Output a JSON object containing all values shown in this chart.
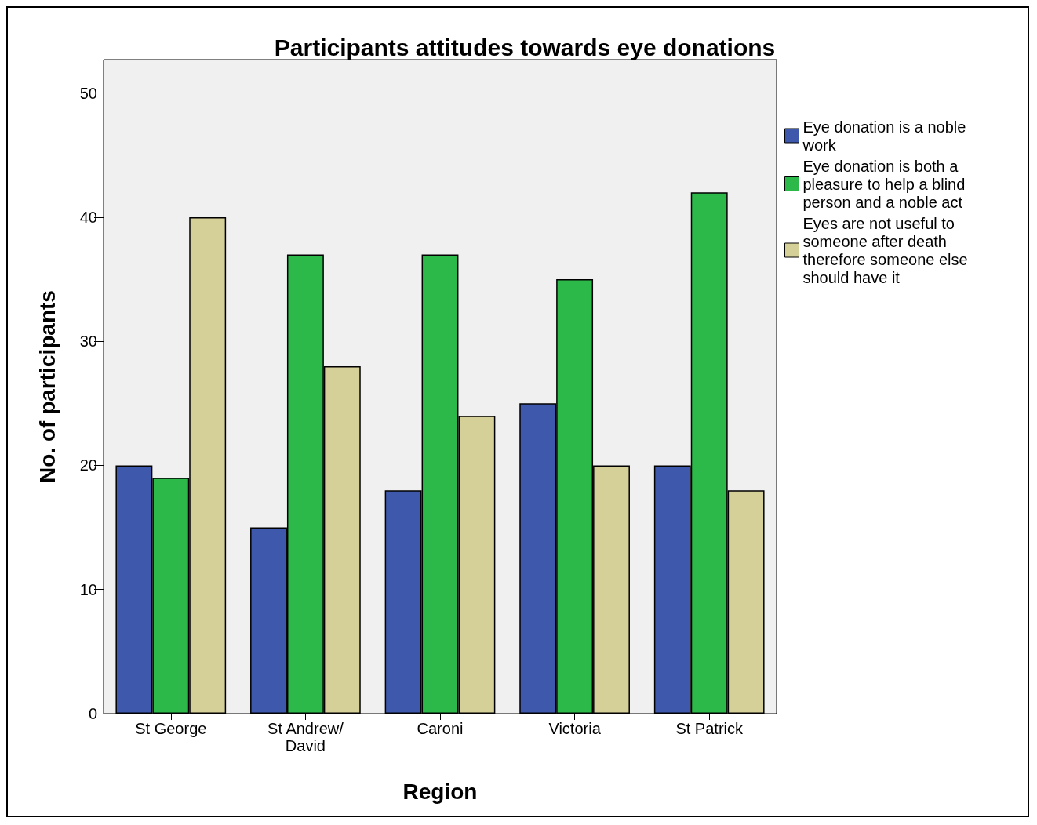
{
  "chart_data": {
    "type": "bar",
    "title": "Participants attitudes towards eye donations",
    "xlabel": "Region",
    "ylabel": "No. of participants",
    "categories": [
      "St George",
      "St Andrew/David",
      "Caroni",
      "Victoria",
      "St Patrick"
    ],
    "series": [
      {
        "name": "Eye donation is a noble work",
        "color": "#3e58ac",
        "values": [
          20,
          15,
          18,
          25,
          20
        ]
      },
      {
        "name": "Eye donation is both a pleasure to help a blind person and a noble act",
        "color": "#2db84a",
        "values": [
          19,
          37,
          37,
          35,
          42
        ]
      },
      {
        "name": "Eyes are not useful to someone after death therefore someone else should have it",
        "color": "#d5cf98",
        "values": [
          40,
          28,
          24,
          20,
          18
        ]
      }
    ],
    "ylim": [
      0,
      52.7
    ],
    "yticks": [
      0,
      10,
      20,
      30,
      40,
      50
    ],
    "grid": false,
    "legend": "right"
  }
}
